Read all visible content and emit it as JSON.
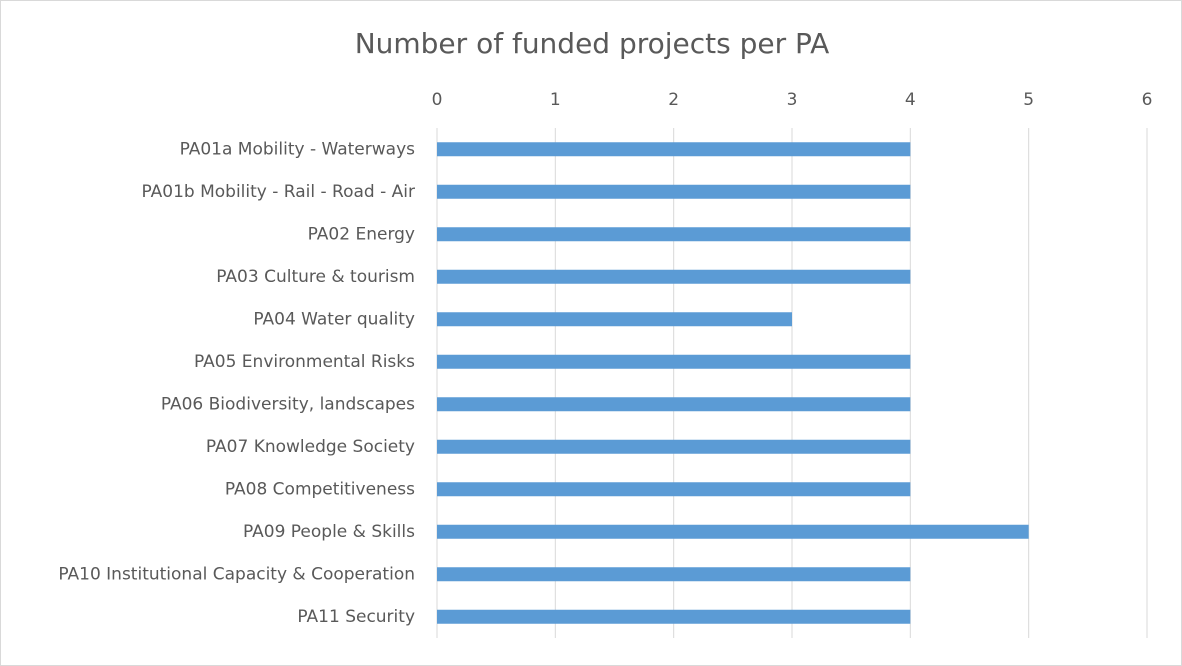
{
  "chart_data": {
    "type": "bar",
    "orientation": "horizontal",
    "title": "Number of funded projects per PA",
    "categories": [
      "PA01a Mobility - Waterways",
      "PA01b Mobility - Rail - Road - Air",
      "PA02 Energy",
      "PA03 Culture & tourism",
      "PA04 Water quality",
      "PA05 Environmental Risks",
      "PA06 Biodiversity, landscapes",
      "PA07 Knowledge Society",
      "PA08 Competitiveness",
      "PA09 People & Skills",
      "PA10 Institutional Capacity & Cooperation",
      "PA11 Security"
    ],
    "values": [
      4,
      4,
      4,
      4,
      3,
      4,
      4,
      4,
      4,
      5,
      4,
      4
    ],
    "color": "#5b9bd5",
    "xlim": [
      0,
      6
    ],
    "xticks": [
      0,
      1,
      2,
      3,
      4,
      5,
      6
    ],
    "grid": true
  }
}
